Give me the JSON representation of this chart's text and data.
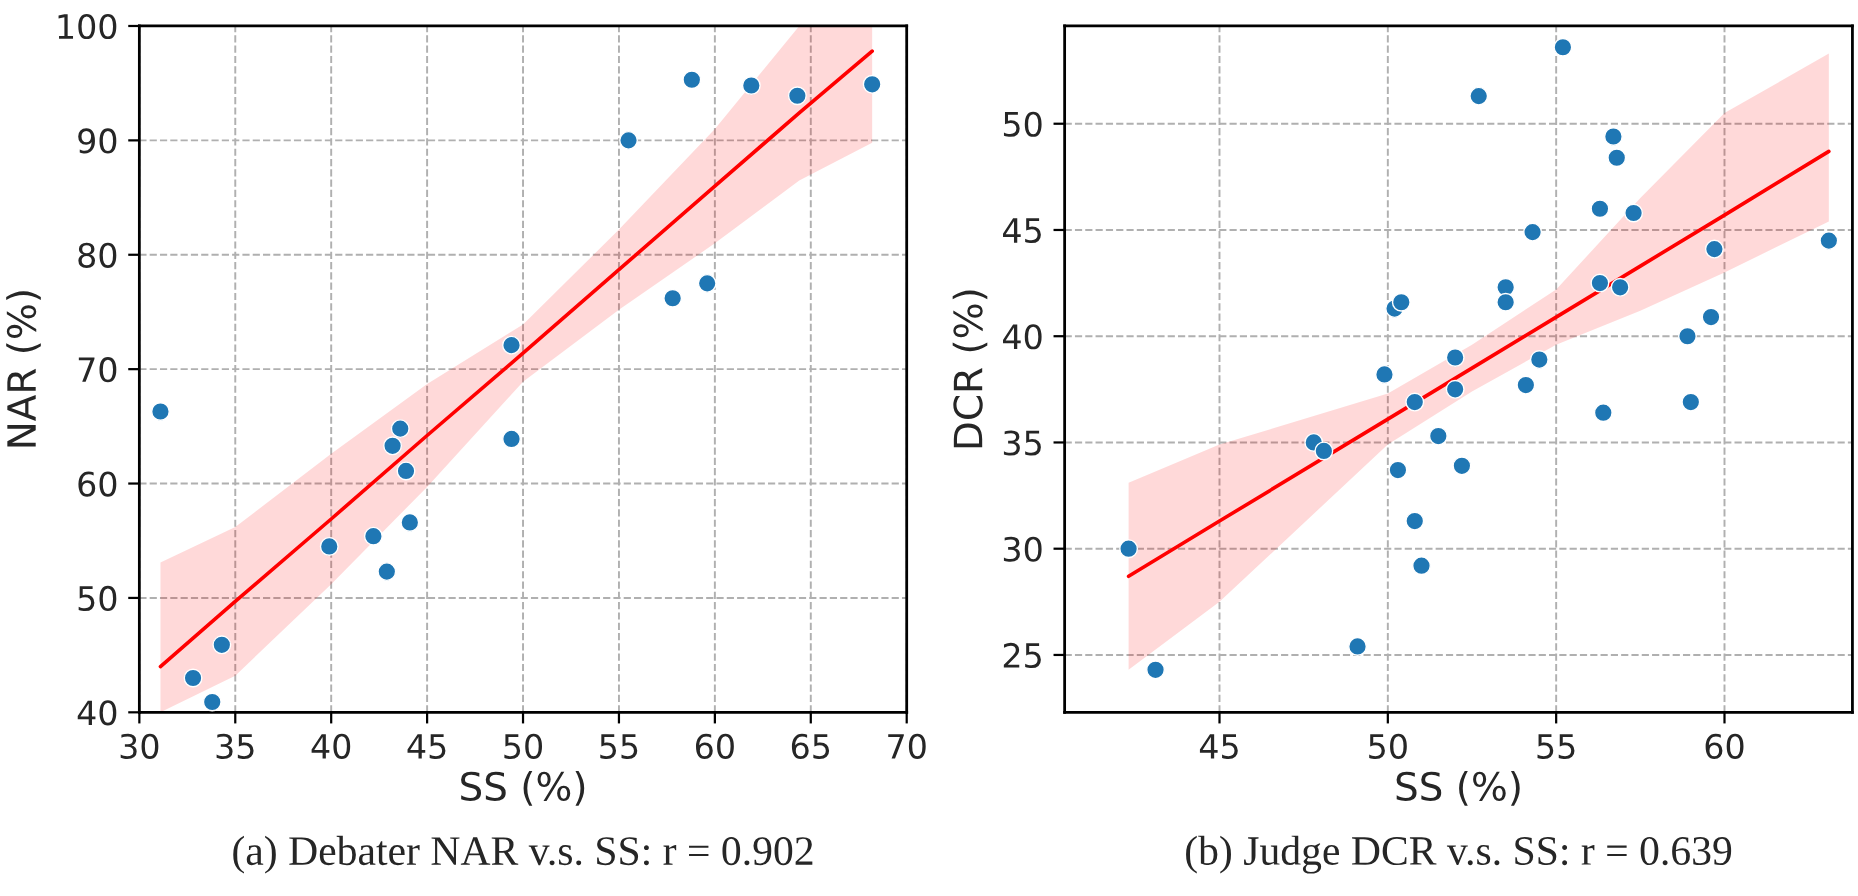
{
  "chart_data": [
    {
      "type": "scatter",
      "xlabel": "SS (%)",
      "ylabel": "NAR (%)",
      "annotations": [
        "(a) Debater NAR v.s. SS: r = 0.902"
      ],
      "xlim": [
        30,
        70
      ],
      "xticks": [
        30,
        35,
        40,
        45,
        50,
        55,
        60,
        65,
        70
      ],
      "ylim": [
        40,
        100
      ],
      "yticks": [
        40,
        50,
        60,
        70,
        80,
        90,
        100
      ],
      "grid": true,
      "marker": "circle",
      "series": [
        {
          "color": "#1f77b4",
          "x": [
            31.1,
            32.8,
            33.8,
            34.3,
            39.9,
            42.2,
            42.9,
            43.2,
            43.6,
            43.9,
            44.1,
            49.4,
            49.4,
            55.5,
            57.8,
            58.8,
            59.6,
            61.9,
            64.3,
            68.2
          ],
          "values": [
            66.3,
            43.0,
            40.9,
            45.9,
            54.5,
            55.4,
            52.3,
            63.3,
            64.8,
            61.1,
            56.6,
            72.1,
            63.9,
            90.0,
            76.2,
            95.3,
            77.5,
            94.8,
            93.9,
            94.9
          ]
        },
        {
          "type": "line",
          "color": "#ff0000",
          "marker": "none",
          "x": [
            31.1,
            35,
            40,
            45,
            50,
            55,
            60,
            64.4,
            68.2
          ],
          "values": [
            44.0,
            49.7,
            56.9,
            64.2,
            71.4,
            78.7,
            86.0,
            92.4,
            97.8
          ],
          "lower": [
            40.0,
            43.2,
            51.2,
            59.7,
            68.9,
            75.2,
            81.0,
            86.5,
            89.8
          ],
          "upper": [
            53.1,
            56.2,
            62.6,
            68.7,
            73.9,
            82.2,
            91.0,
            100.0,
            100.0
          ]
        }
      ]
    },
    {
      "type": "scatter",
      "xlabel": "SS (%)",
      "ylabel": "DCR (%)",
      "annotations": [
        "(b) Judge DCR v.s. SS: r = 0.639"
      ],
      "xlim": [
        40.4,
        63.8
      ],
      "xticks": [
        45,
        50,
        55,
        60
      ],
      "ylim": [
        22.3,
        54.6
      ],
      "yticks": [
        25,
        30,
        35,
        40,
        45,
        50
      ],
      "grid": true,
      "marker": "circle",
      "series": [
        {
          "color": "#1f77b4",
          "x": [
            42.3,
            43.1,
            47.8,
            48.1,
            49.1,
            49.9,
            50.2,
            50.4,
            50.3,
            50.8,
            50.8,
            51.0,
            51.5,
            52.0,
            52.0,
            52.2,
            52.7,
            53.5,
            53.5,
            54.1,
            54.3,
            54.5,
            55.2,
            56.3,
            56.3,
            56.4,
            56.7,
            56.8,
            56.9,
            57.3,
            58.9,
            59.0,
            59.6,
            59.7,
            63.1
          ],
          "values": [
            30.0,
            24.3,
            35.0,
            34.6,
            25.4,
            38.2,
            41.3,
            41.6,
            33.7,
            36.9,
            31.3,
            29.2,
            35.3,
            39.0,
            37.5,
            33.9,
            51.3,
            42.3,
            41.6,
            37.7,
            44.9,
            38.9,
            53.6,
            42.5,
            46.0,
            36.4,
            49.4,
            48.4,
            42.3,
            45.8,
            40.0,
            36.9,
            40.9,
            44.1,
            44.5
          ]
        },
        {
          "type": "line",
          "color": "#ff0000",
          "marker": "none",
          "x": [
            42.3,
            45,
            50,
            52.5,
            55,
            57.5,
            60,
            63.1
          ],
          "values": [
            28.7,
            31.3,
            36.1,
            38.5,
            40.9,
            43.3,
            45.7,
            48.7
          ],
          "lower": [
            24.3,
            27.5,
            34.9,
            37.4,
            39.6,
            41.2,
            43.0,
            45.4
          ],
          "upper": [
            33.1,
            34.9,
            37.3,
            39.6,
            42.2,
            46.5,
            50.5,
            53.3
          ]
        }
      ]
    }
  ]
}
